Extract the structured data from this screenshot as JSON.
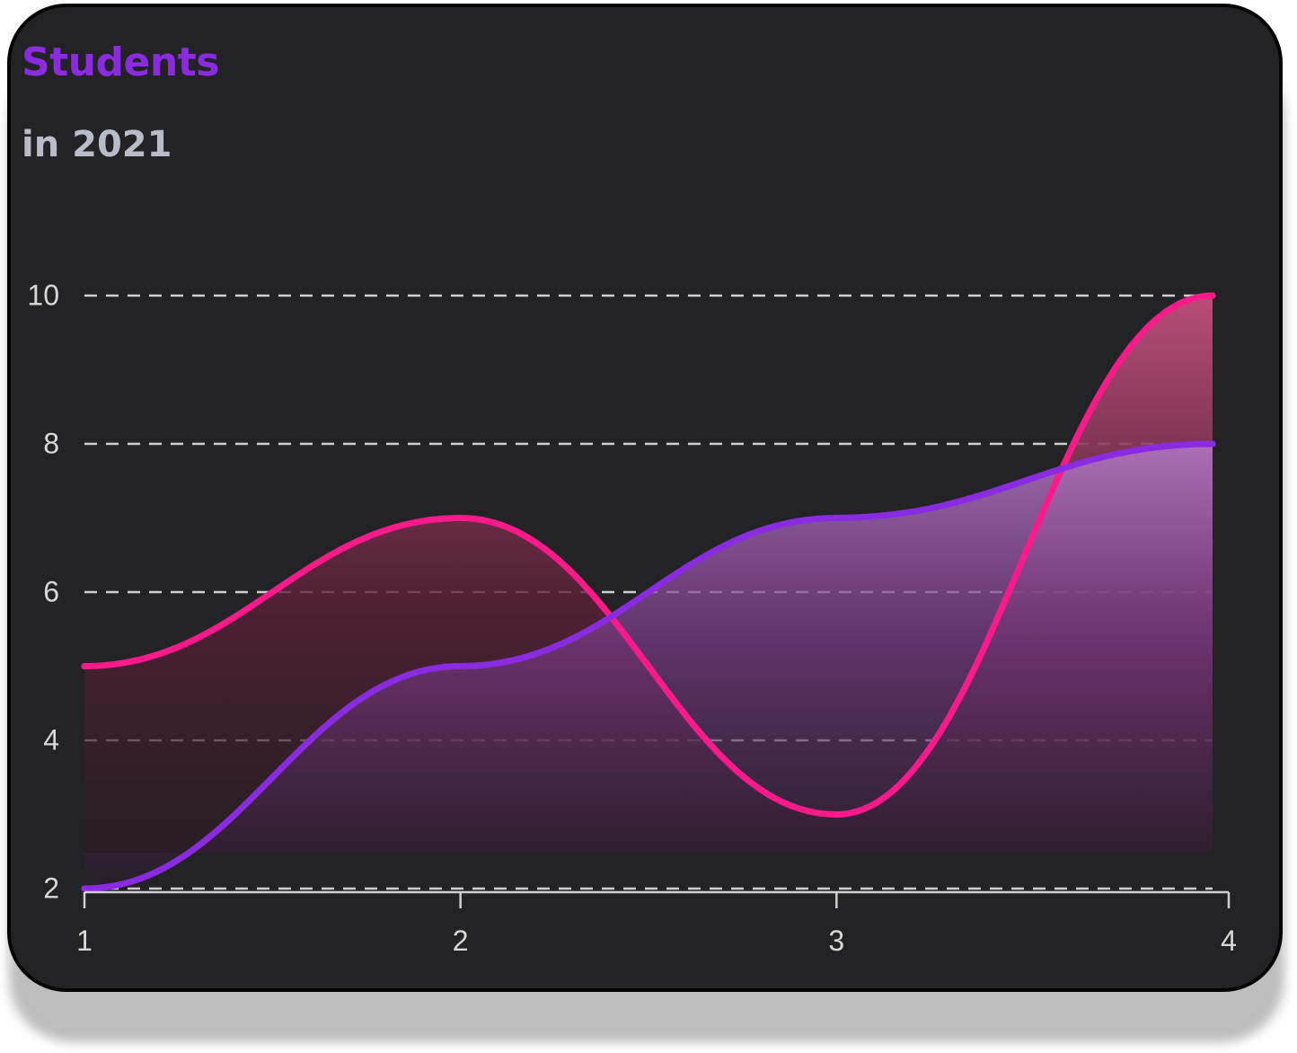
{
  "header": {
    "title": "Students",
    "subtitle": "in 2021"
  },
  "colors": {
    "background": "#232325",
    "title": "#8a2be2",
    "series_pink": "#ff1a8c",
    "series_purple": "#8a2be2"
  },
  "chart_data": {
    "type": "area",
    "title": "Students",
    "subtitle": "in 2021",
    "xlabel": "",
    "ylabel": "",
    "x": [
      1,
      2,
      3,
      4
    ],
    "x_ticks": [
      "1",
      "2",
      "3",
      "4"
    ],
    "y_ticks": [
      "2",
      "4",
      "6",
      "8",
      "10"
    ],
    "xlim": [
      1,
      4
    ],
    "ylim": [
      2,
      10
    ],
    "grid": "horizontal-dashed",
    "legend": "none",
    "curve": "smooth",
    "series": [
      {
        "values": [
          5,
          7,
          3,
          10
        ],
        "color": "#ff1a8c"
      },
      {
        "values": [
          2,
          5,
          7,
          8
        ],
        "color": "#8a2be2"
      }
    ]
  }
}
